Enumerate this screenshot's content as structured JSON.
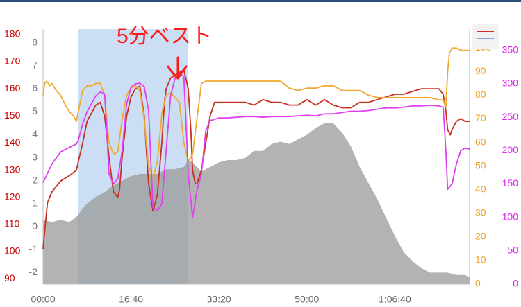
{
  "colors": {
    "series_red": "#c83020",
    "series_orange": "#f0a830",
    "series_magenta": "#e040f0",
    "area_fill": "#9a9a9a",
    "highlight": "#a8c8ec",
    "axis_red_text": "#cc0000",
    "axis_gray_text": "#777777",
    "axis_orange_text": "#f0a020",
    "axis_magenta_text": "#dd22ee"
  },
  "annotation": {
    "text": "5分ベスト",
    "arrow_icon": "hand-drawn-down-arrow"
  },
  "legend_button": {
    "icon": "legend-lines-icon"
  },
  "chart_data": {
    "type": "line",
    "x_unit": "time",
    "x_ticks": [
      "00:00",
      "16:40",
      "33:20",
      "50:00",
      "1:06:40"
    ],
    "x_tick_seconds": [
      0,
      1000,
      2000,
      3000,
      4000
    ],
    "xlim_seconds": [
      0,
      4850
    ],
    "highlight_range_seconds": [
      400,
      1650
    ],
    "axes": {
      "red": {
        "ticks": [
          "180",
          "170",
          "160",
          "150",
          "140",
          "130",
          "120",
          "110",
          "100",
          "90"
        ],
        "ylim": [
          88,
          182
        ]
      },
      "gray": {
        "ticks": [
          "8",
          "7",
          "6",
          "5",
          "4",
          "3",
          "2",
          "1",
          "0",
          "-1",
          "-2"
        ],
        "ylim": [
          -2.5,
          8.6
        ]
      },
      "orange": {
        "ticks": [
          "100",
          "90",
          "80",
          "70",
          "60",
          "50",
          "40",
          "30",
          "20",
          "10",
          "0"
        ],
        "ylim": [
          0,
          108
        ]
      },
      "magenta": {
        "ticks": [
          "350",
          "300",
          "250",
          "200",
          "150",
          "100",
          "50",
          "0"
        ],
        "ylim": [
          0,
          382
        ]
      }
    },
    "series": [
      {
        "color": "red",
        "axis": "red",
        "x": [
          0,
          50,
          100,
          200,
          300,
          380,
          400,
          450,
          500,
          600,
          650,
          700,
          750,
          800,
          850,
          870,
          900,
          950,
          1000,
          1050,
          1100,
          1150,
          1200,
          1250,
          1300,
          1350,
          1380,
          1400,
          1450,
          1500,
          1550,
          1600,
          1650,
          1680,
          1700,
          1730,
          1750,
          1800,
          1850,
          1900,
          1950,
          2000,
          2050,
          2100,
          2150,
          2200,
          2300,
          2400,
          2500,
          2600,
          2700,
          2800,
          2900,
          3000,
          3100,
          3200,
          3300,
          3400,
          3500,
          3600,
          3700,
          3800,
          3900,
          4000,
          4100,
          4200,
          4300,
          4400,
          4500,
          4550,
          4580,
          4600,
          4630,
          4650,
          4700,
          4750,
          4800,
          4850
        ],
        "values": [
          101,
          118,
          122,
          126,
          128,
          130,
          133,
          140,
          148,
          154,
          155,
          150,
          135,
          122,
          120,
          123,
          135,
          150,
          157,
          160,
          161,
          150,
          125,
          115,
          121,
          140,
          155,
          160,
          164,
          165,
          166,
          167,
          160,
          145,
          130,
          125,
          125,
          130,
          140,
          150,
          155,
          155,
          155,
          155,
          155,
          155,
          155,
          154,
          156,
          155,
          155,
          154,
          154,
          156,
          154,
          156,
          154,
          153,
          153,
          155,
          155,
          156,
          157,
          158,
          158,
          159,
          160,
          160,
          160,
          158,
          152,
          145,
          143,
          145,
          148,
          149,
          148,
          148
        ]
      },
      {
        "color": "orange",
        "axis": "orange",
        "x": [
          0,
          20,
          40,
          60,
          80,
          100,
          150,
          200,
          250,
          300,
          350,
          380,
          400,
          450,
          500,
          550,
          600,
          650,
          700,
          750,
          800,
          850,
          900,
          950,
          1000,
          1050,
          1100,
          1150,
          1200,
          1250,
          1300,
          1350,
          1400,
          1450,
          1500,
          1550,
          1600,
          1650,
          1700,
          1750,
          1800,
          1850,
          1900,
          1950,
          2000,
          2100,
          2200,
          2300,
          2400,
          2500,
          2600,
          2700,
          2800,
          2900,
          3000,
          3100,
          3200,
          3300,
          3400,
          3500,
          3600,
          3700,
          3800,
          3900,
          4000,
          4100,
          4200,
          4300,
          4400,
          4500,
          4550,
          4580,
          4600,
          4620,
          4650,
          4700,
          4750,
          4800,
          4850
        ],
        "values": [
          80,
          85,
          86,
          85,
          84,
          85,
          82,
          80,
          76,
          73,
          71,
          69,
          73,
          82,
          84,
          84,
          85,
          85,
          80,
          60,
          55,
          56,
          70,
          80,
          83,
          84,
          82,
          70,
          50,
          45,
          52,
          72,
          80,
          81,
          79,
          77,
          60,
          52,
          55,
          70,
          85,
          86,
          86,
          86,
          86,
          86,
          86,
          86,
          86,
          86,
          86,
          86,
          83,
          82,
          83,
          83,
          84,
          84,
          82,
          82,
          82,
          80,
          79,
          79,
          79,
          79,
          79,
          79,
          79,
          78,
          78,
          75,
          90,
          98,
          100,
          100,
          99,
          99,
          99
        ]
      },
      {
        "color": "magenta",
        "axis": "magenta",
        "x": [
          0,
          100,
          200,
          300,
          380,
          400,
          450,
          500,
          550,
          600,
          650,
          700,
          720,
          750,
          800,
          850,
          900,
          950,
          1000,
          1050,
          1100,
          1150,
          1200,
          1250,
          1300,
          1350,
          1400,
          1450,
          1500,
          1550,
          1600,
          1640,
          1650,
          1700,
          1750,
          1800,
          1850,
          1900,
          1950,
          2000,
          2100,
          2200,
          2300,
          2400,
          2500,
          2600,
          2700,
          2800,
          2900,
          3000,
          3100,
          3200,
          3300,
          3400,
          3500,
          3600,
          3700,
          3800,
          3900,
          4000,
          4100,
          4200,
          4300,
          4400,
          4500,
          4550,
          4580,
          4600,
          4650,
          4700,
          4750,
          4800,
          4850
        ],
        "values": [
          152,
          180,
          198,
          205,
          210,
          215,
          240,
          258,
          270,
          282,
          288,
          285,
          240,
          165,
          150,
          158,
          200,
          270,
          295,
          300,
          301,
          296,
          260,
          115,
          110,
          120,
          200,
          282,
          308,
          316,
          311,
          200,
          165,
          100,
          140,
          165,
          230,
          245,
          247,
          249,
          249,
          250,
          251,
          251,
          250,
          251,
          251,
          251,
          252,
          253,
          252,
          255,
          255,
          257,
          259,
          259,
          260,
          262,
          264,
          264,
          265,
          267,
          267,
          268,
          267,
          265,
          200,
          142,
          150,
          180,
          200,
          204,
          202
        ]
      }
    ],
    "area": {
      "color": "gray",
      "axis": "gray",
      "x": [
        0,
        100,
        200,
        300,
        400,
        450,
        500,
        600,
        700,
        800,
        900,
        1000,
        1100,
        1200,
        1300,
        1400,
        1500,
        1600,
        1650,
        1700,
        1800,
        1900,
        2000,
        2100,
        2200,
        2300,
        2400,
        2500,
        2600,
        2700,
        2800,
        2900,
        3000,
        3100,
        3200,
        3300,
        3400,
        3500,
        3600,
        3700,
        3800,
        3900,
        4000,
        4100,
        4200,
        4300,
        4400,
        4500,
        4600,
        4700,
        4800,
        4850
      ],
      "values": [
        0.3,
        0.2,
        0.3,
        0.2,
        0.5,
        0.8,
        1.0,
        1.3,
        1.5,
        1.8,
        2.0,
        2.2,
        2.3,
        2.3,
        2.3,
        2.5,
        2.5,
        2.6,
        2.9,
        2.8,
        2.4,
        2.6,
        2.8,
        2.9,
        2.9,
        3.0,
        3.3,
        3.3,
        3.6,
        3.7,
        3.6,
        3.8,
        4.0,
        4.3,
        4.5,
        4.5,
        4.1,
        3.5,
        2.6,
        1.9,
        1.2,
        0.4,
        -0.4,
        -1.1,
        -1.5,
        -1.8,
        -2.0,
        -2.0,
        -2.0,
        -2.1,
        -2.1,
        -2.2
      ]
    }
  }
}
